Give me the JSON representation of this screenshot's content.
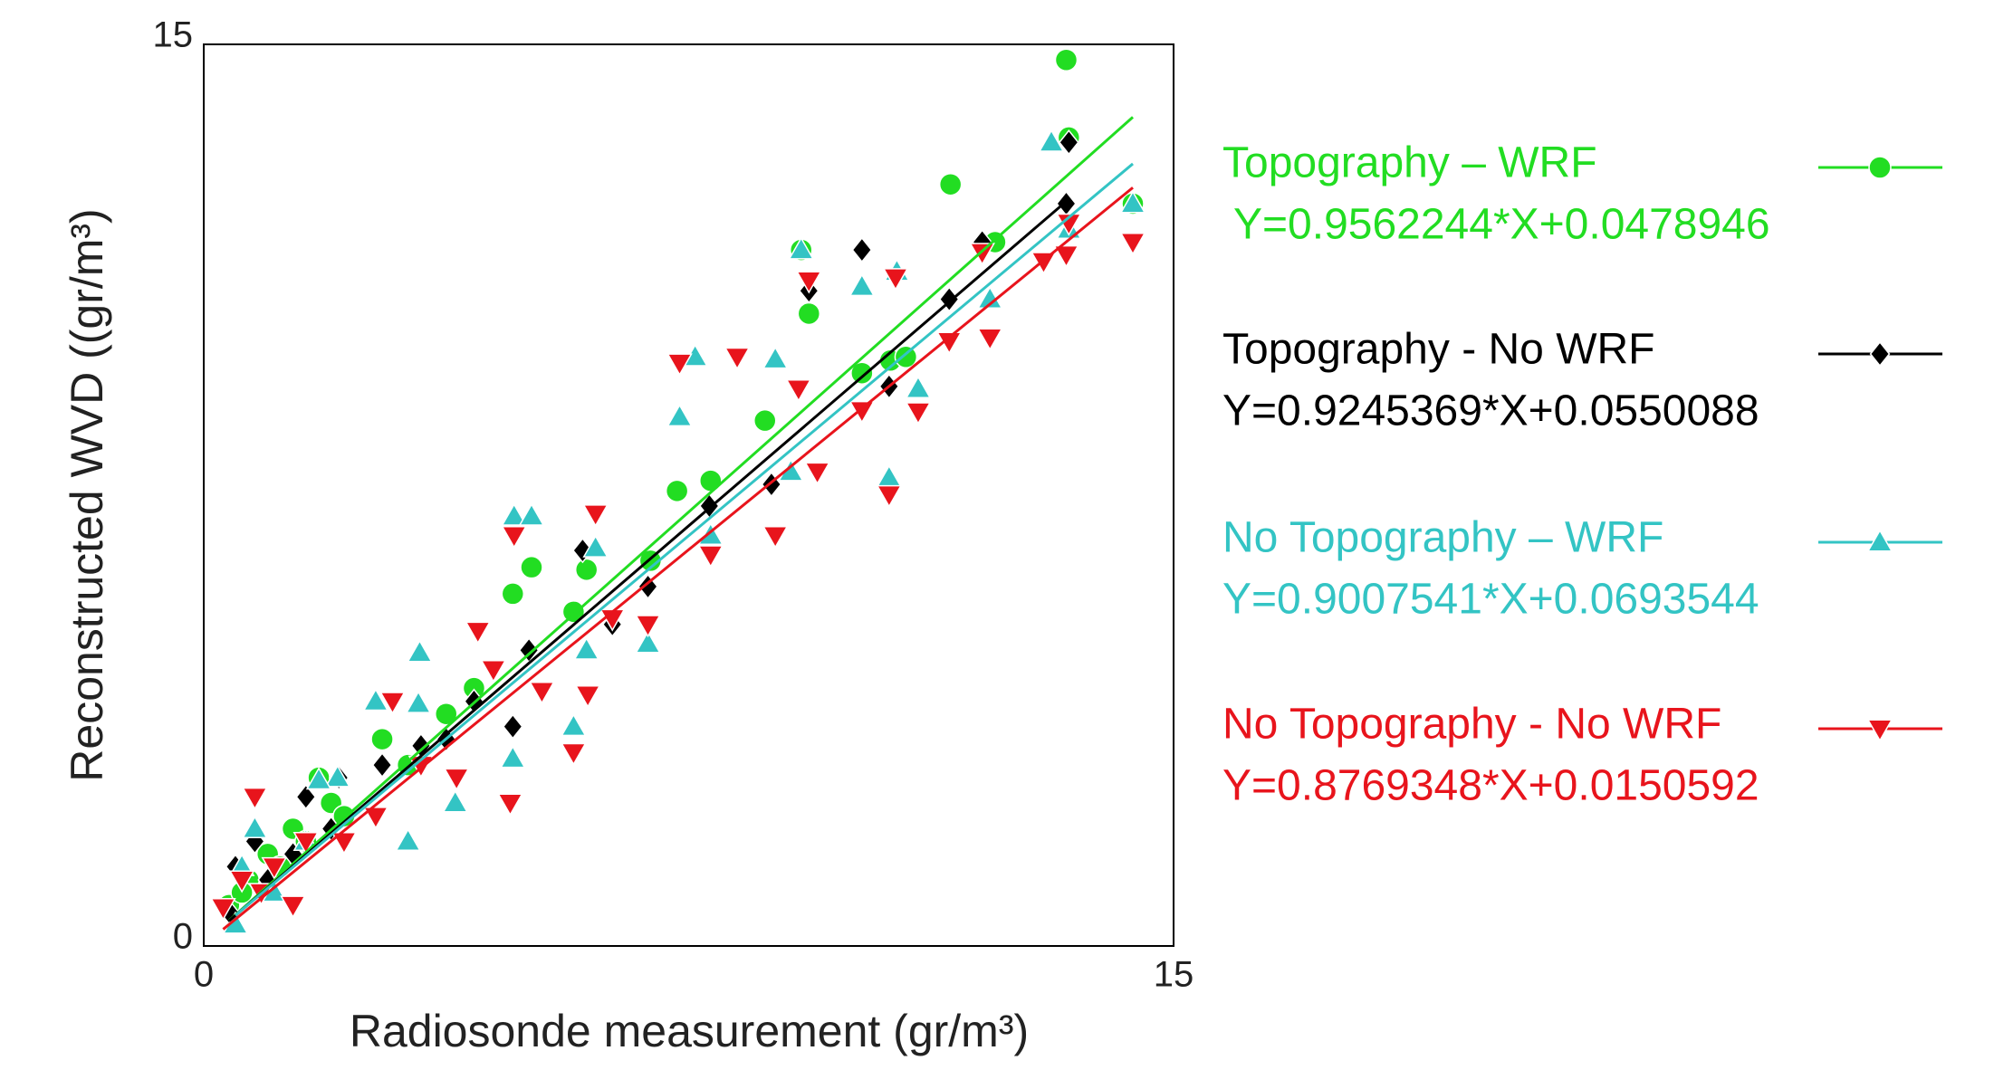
{
  "chart_data": {
    "type": "scatter",
    "x_label": "Radiosonde measurement (gr/m³)",
    "y_label": "Reconstructed WVD ((gr/m³)",
    "xlim": [
      0,
      15
    ],
    "ylim": [
      0,
      15
    ],
    "xticks": [
      0,
      15
    ],
    "yticks": [
      0,
      15
    ],
    "series": [
      {
        "name": "Topography – WRF",
        "equation": "Y=0.9562244*X+0.0478946",
        "color": "#22dd22",
        "marker": "circle",
        "x": [
          13.34,
          11.55,
          13.38,
          14.37,
          9.36,
          9.24,
          7.32,
          7.84,
          5.07,
          4.78,
          5.92,
          10.18,
          10.62,
          4.18,
          3.75,
          2.76,
          1.97,
          1.78,
          1.38,
          0.99,
          0.69,
          0.39,
          0.59,
          2.17,
          3.16,
          5.72,
          6.91,
          8.68,
          10.86,
          12.24,
          1.18,
          1.58
        ],
        "values": [
          14.74,
          12.67,
          13.45,
          12.35,
          10.52,
          11.58,
          7.57,
          7.74,
          6.3,
          5.86,
          6.26,
          9.53,
          9.74,
          4.29,
          3.86,
          3.44,
          2.38,
          2.8,
          1.95,
          1.53,
          1.1,
          0.68,
          0.89,
          2.16,
          3.01,
          5.56,
          6.41,
          8.74,
          9.8,
          11.71,
          1.32,
          1.74
        ]
      },
      {
        "name": "Topography - No WRF",
        "equation": "Y=0.9245369*X+0.0550088",
        "color": "#000000",
        "marker": "diamond",
        "x": [
          13.38,
          13.34,
          10.18,
          9.36,
          11.53,
          10.6,
          8.78,
          7.82,
          6.87,
          5.86,
          4.78,
          5.03,
          4.18,
          3.36,
          2.09,
          1.58,
          0.79,
          0.49,
          0.99,
          2.76,
          3.75,
          6.32,
          12.04,
          1.38,
          1.97,
          0.39
        ],
        "values": [
          13.37,
          12.35,
          11.58,
          10.9,
          10.76,
          9.31,
          7.68,
          7.32,
          5.98,
          6.58,
          3.65,
          4.92,
          4.07,
          3.33,
          2.8,
          2.48,
          1.74,
          1.32,
          1.1,
          3.01,
          3.44,
          5.35,
          11.71,
          1.53,
          1.95,
          0.57
        ]
      },
      {
        "name": "No Topography – WRF",
        "equation": "Y=0.9007541*X+0.0693544",
        "color": "#33c4c4",
        "marker": "triangle-up",
        "x": [
          13.11,
          14.37,
          13.38,
          9.24,
          10.18,
          10.72,
          12.16,
          11.05,
          10.6,
          8.84,
          7.36,
          7.84,
          4.8,
          5.07,
          6.06,
          5.72,
          6.87,
          3.34,
          2.66,
          3.32,
          4.78,
          3.89,
          3.16,
          2.07,
          1.78,
          0.79,
          0.59,
          1.09,
          0.49,
          5.92,
          9.08,
          7.6,
          1.58
        ],
        "values": [
          13.37,
          12.35,
          11.92,
          11.58,
          10.97,
          11.22,
          10.76,
          9.27,
          7.79,
          9.76,
          8.8,
          6.83,
          7.15,
          7.15,
          6.62,
          3.65,
          5.03,
          4.88,
          4.07,
          4.03,
          3.12,
          2.38,
          1.74,
          2.8,
          2.76,
          1.95,
          1.32,
          0.89,
          0.36,
          4.92,
          7.89,
          9.8,
          1.74
        ]
      },
      {
        "name": "No Topography - No WRF",
        "equation": "Y=0.8769348*X+0.0150592",
        "color": "#e8141c",
        "marker": "triangle-down",
        "x": [
          14.37,
          13.34,
          12.99,
          13.38,
          12.04,
          11.53,
          12.16,
          11.05,
          10.6,
          10.18,
          10.7,
          9.36,
          8.25,
          7.36,
          9.2,
          8.84,
          7.84,
          9.49,
          6.06,
          4.8,
          6.32,
          6.87,
          5.94,
          5.23,
          4.24,
          4.48,
          2.92,
          5.72,
          4.74,
          3.91,
          3.36,
          2.66,
          2.17,
          1.58,
          0.79,
          1.09,
          0.59,
          0.3,
          1.38,
          0.89
        ],
        "values": [
          11.71,
          11.5,
          11.39,
          12.03,
          11.54,
          10.06,
          10.12,
          8.89,
          7.51,
          8.91,
          11.12,
          11.07,
          9.8,
          9.7,
          9.27,
          6.83,
          6.51,
          7.89,
          7.19,
          6.83,
          5.45,
          5.35,
          4.18,
          4.24,
          5.24,
          4.6,
          4.07,
          3.22,
          2.38,
          2.8,
          3.01,
          2.16,
          1.74,
          1.74,
          2.48,
          1.32,
          1.1,
          0.64,
          0.68,
          0.89
        ]
      }
    ]
  }
}
